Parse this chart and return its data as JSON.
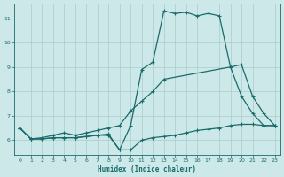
{
  "xlabel": "Humidex (Indice chaleur)",
  "xlim": [
    -0.5,
    23.5
  ],
  "ylim": [
    5.4,
    11.6
  ],
  "yticks": [
    6,
    7,
    8,
    9,
    10,
    11
  ],
  "xticks": [
    0,
    1,
    2,
    3,
    4,
    5,
    6,
    7,
    8,
    9,
    10,
    11,
    12,
    13,
    14,
    15,
    16,
    17,
    18,
    19,
    20,
    21,
    22,
    23
  ],
  "bg_color": "#cce8e8",
  "grid_color": "#aacccc",
  "line_color": "#1a6b6b",
  "line1_x": [
    0,
    1,
    2,
    3,
    4,
    5,
    6,
    7,
    8,
    9,
    10,
    11,
    12,
    13,
    14,
    15,
    16,
    17,
    18,
    19,
    20,
    21,
    22,
    23
  ],
  "line1_y": [
    6.5,
    6.05,
    6.05,
    6.1,
    6.1,
    6.1,
    6.15,
    6.2,
    6.25,
    5.6,
    6.6,
    8.9,
    9.2,
    11.3,
    11.2,
    11.25,
    11.1,
    11.2,
    11.1,
    9.0,
    7.8,
    7.1,
    6.6,
    6.6
  ],
  "line2_x": [
    0,
    1,
    2,
    3,
    4,
    5,
    6,
    7,
    8,
    9,
    10,
    11,
    12,
    13,
    19,
    20,
    21,
    22,
    23
  ],
  "line2_y": [
    6.5,
    6.05,
    6.1,
    6.2,
    6.3,
    6.2,
    6.3,
    6.4,
    6.5,
    6.6,
    7.2,
    7.6,
    8.0,
    8.5,
    9.0,
    9.1,
    7.8,
    7.1,
    6.6
  ],
  "line3_x": [
    0,
    1,
    2,
    3,
    4,
    5,
    6,
    7,
    8,
    9,
    10,
    11,
    12,
    13,
    14,
    15,
    16,
    17,
    18,
    19,
    20,
    21,
    22,
    23
  ],
  "line3_y": [
    6.5,
    6.05,
    6.05,
    6.1,
    6.1,
    6.1,
    6.15,
    6.2,
    6.2,
    5.6,
    5.6,
    6.0,
    6.1,
    6.15,
    6.2,
    6.3,
    6.4,
    6.45,
    6.5,
    6.6,
    6.65,
    6.65,
    6.6,
    6.6
  ]
}
